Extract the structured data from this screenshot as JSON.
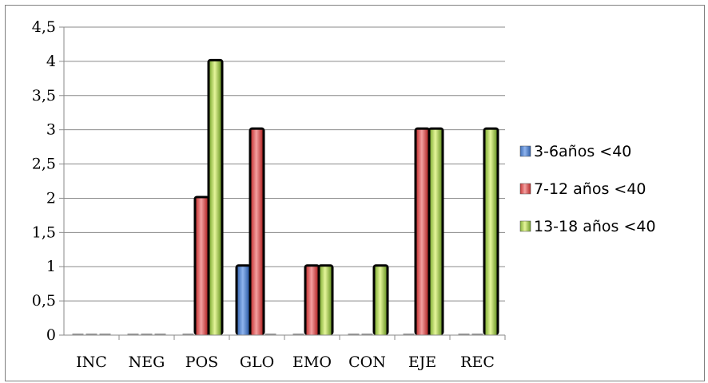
{
  "chart_data": {
    "type": "bar",
    "categories": [
      "INC",
      "NEG",
      "POS",
      "GLO",
      "EMO",
      "CON",
      "EJE",
      "REC"
    ],
    "series": [
      {
        "name": "3-6años <40",
        "values": [
          0,
          0,
          0,
          1,
          0,
          0,
          0,
          0
        ],
        "color": "#5b8ed6"
      },
      {
        "name": "7-12 años <40",
        "values": [
          0,
          0,
          2,
          3,
          1,
          0,
          3,
          0
        ],
        "color": "#e05252"
      },
      {
        "name": "13-18 años <40",
        "values": [
          0,
          0,
          4,
          0,
          1,
          1,
          3,
          3
        ],
        "color": "#a7d04d"
      }
    ],
    "yticks": [
      "0",
      "0,5",
      "1",
      "1,5",
      "2",
      "2,5",
      "3",
      "3,5",
      "4",
      "4,5"
    ],
    "ylim": [
      0,
      4.5
    ],
    "grid": true,
    "legend_position": "right"
  }
}
